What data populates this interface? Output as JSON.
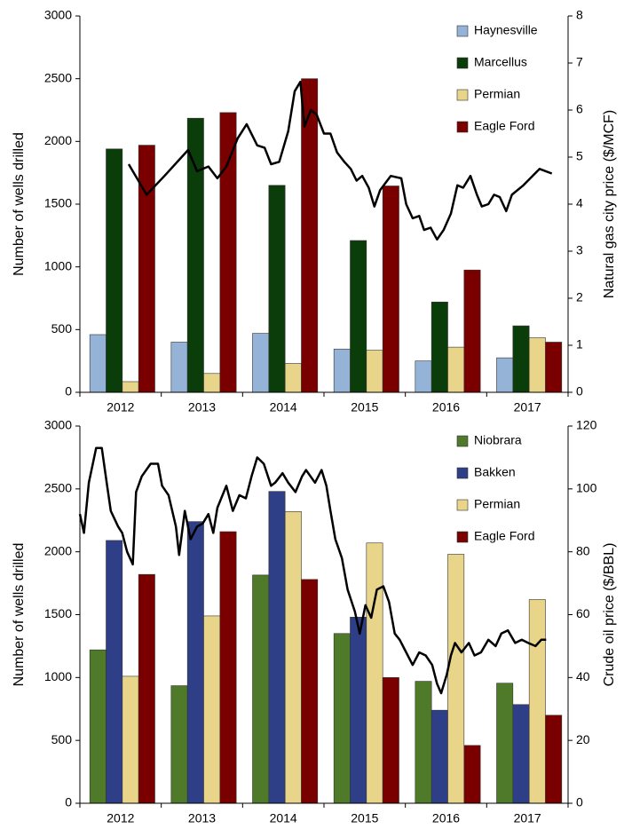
{
  "chart_data": [
    {
      "type": "bar",
      "ylabel": "Number of wells drilled",
      "y2label": "Natural gas city price ($/MCF)",
      "categories": [
        "2012",
        "2013",
        "2014",
        "2015",
        "2016",
        "2017"
      ],
      "xlim": [
        2012,
        2018
      ],
      "ylim": [
        0,
        3000
      ],
      "yticks": [
        0,
        500,
        1000,
        1500,
        2000,
        2500,
        3000
      ],
      "y2lim": [
        0,
        8
      ],
      "y2ticks": [
        0,
        1,
        2,
        3,
        4,
        5,
        6,
        7,
        8
      ],
      "legend": "upper right",
      "series": [
        {
          "name": "Haynesville",
          "color": "#95b3d7",
          "values": [
            460,
            400,
            470,
            345,
            250,
            275
          ]
        },
        {
          "name": "Marcellus",
          "color": "#0b3d0b",
          "values": [
            1940,
            2185,
            1650,
            1210,
            720,
            530
          ]
        },
        {
          "name": "Permian",
          "color": "#e8d58a",
          "values": [
            85,
            150,
            230,
            335,
            360,
            435
          ]
        },
        {
          "name": "Eagle Ford",
          "color": "#7a0000",
          "values": [
            1970,
            2230,
            2500,
            1645,
            975,
            400
          ]
        },
        {
          "type": "line",
          "axis": "y2",
          "color": "#000000",
          "x": [
            2012.6,
            2012.82,
            2013.04,
            2013.33,
            2013.44,
            2013.58,
            2013.69,
            2013.8,
            2013.94,
            2014.05,
            2014.18,
            2014.27,
            2014.35,
            2014.45,
            2014.56,
            2014.64,
            2014.71,
            2014.76,
            2014.84,
            2014.91,
            2015.0,
            2015.08,
            2015.16,
            2015.25,
            2015.33,
            2015.4,
            2015.47,
            2015.55,
            2015.62,
            2015.69,
            2015.82,
            2015.95,
            2016.01,
            2016.09,
            2016.17,
            2016.23,
            2016.31,
            2016.39,
            2016.47,
            2016.56,
            2016.64,
            2016.71,
            2016.8,
            2016.88,
            2016.94,
            2017.02,
            2017.09,
            2017.16,
            2017.24,
            2017.31,
            2017.45,
            2017.65,
            2017.8
          ],
          "values": [
            4.85,
            4.2,
            4.6,
            5.15,
            4.7,
            4.8,
            4.55,
            4.8,
            5.4,
            5.7,
            5.25,
            5.2,
            4.85,
            4.9,
            5.55,
            6.4,
            6.6,
            5.65,
            6.0,
            5.9,
            5.5,
            5.5,
            5.1,
            4.9,
            4.75,
            4.5,
            4.6,
            4.35,
            3.95,
            4.3,
            4.6,
            4.55,
            4.0,
            3.7,
            3.75,
            3.45,
            3.5,
            3.25,
            3.45,
            3.8,
            4.4,
            4.35,
            4.6,
            4.2,
            3.95,
            4.0,
            4.2,
            4.15,
            3.85,
            4.2,
            4.4,
            4.75,
            4.65
          ]
        }
      ]
    },
    {
      "type": "bar",
      "ylabel": "Number of wells drilled",
      "y2label": "Crude oil price ($/BBL)",
      "categories": [
        "2012",
        "2013",
        "2014",
        "2015",
        "2016",
        "2017"
      ],
      "xlim": [
        2012,
        2018
      ],
      "ylim": [
        0,
        3000
      ],
      "yticks": [
        0,
        500,
        1000,
        1500,
        2000,
        2500,
        3000
      ],
      "y2lim": [
        0,
        120
      ],
      "y2ticks": [
        0,
        20,
        40,
        60,
        80,
        100,
        120
      ],
      "legend": "upper right",
      "series": [
        {
          "name": "Niobrara",
          "color": "#4e7a29",
          "values": [
            1220,
            935,
            1815,
            1350,
            970,
            955
          ]
        },
        {
          "name": "Bakken",
          "color": "#2e3f87",
          "values": [
            2090,
            2240,
            2480,
            1480,
            740,
            785
          ]
        },
        {
          "name": "Permian",
          "color": "#e8d58a",
          "values": [
            1010,
            1490,
            2320,
            2070,
            1980,
            1620
          ]
        },
        {
          "name": "Eagle Ford",
          "color": "#7a0000",
          "values": [
            1820,
            2160,
            1780,
            1000,
            460,
            700
          ]
        },
        {
          "type": "line",
          "axis": "y2",
          "color": "#000000",
          "x": [
            2012.0,
            2012.05,
            2012.11,
            2012.2,
            2012.27,
            2012.33,
            2012.38,
            2012.47,
            2012.52,
            2012.58,
            2012.65,
            2012.69,
            2012.76,
            2012.87,
            2012.96,
            2013.01,
            2013.09,
            2013.18,
            2013.22,
            2013.29,
            2013.36,
            2013.44,
            2013.51,
            2013.58,
            2013.64,
            2013.69,
            2013.8,
            2013.88,
            2013.96,
            2014.04,
            2014.11,
            2014.18,
            2014.26,
            2014.35,
            2014.4,
            2014.49,
            2014.56,
            2014.65,
            2014.73,
            2014.78,
            2014.89,
            2014.97,
            2015.03,
            2015.08,
            2015.14,
            2015.22,
            2015.29,
            2015.38,
            2015.44,
            2015.51,
            2015.58,
            2015.65,
            2015.73,
            2015.8,
            2015.87,
            2015.93,
            2016.01,
            2016.09,
            2016.17,
            2016.25,
            2016.33,
            2016.39,
            2016.44,
            2016.51,
            2016.56,
            2016.61,
            2016.69,
            2016.78,
            2016.85,
            2016.93,
            2017.02,
            2017.11,
            2017.18,
            2017.26,
            2017.35,
            2017.43,
            2017.51,
            2017.6,
            2017.67,
            2017.73
          ],
          "values": [
            92,
            86,
            102,
            113,
            113,
            102,
            93,
            88,
            86,
            80,
            76,
            99,
            104,
            108,
            108,
            101,
            98,
            88,
            79,
            93,
            84,
            88,
            89,
            92,
            86,
            94,
            101,
            93,
            98,
            97,
            104,
            110,
            108,
            101,
            102,
            105,
            102,
            99,
            104,
            106,
            102,
            106,
            101,
            93,
            84,
            78,
            68,
            61,
            54,
            63,
            59,
            68,
            69,
            64,
            54,
            52,
            48,
            44,
            48,
            47,
            44,
            38,
            35,
            41,
            47,
            51,
            48,
            51,
            47,
            48,
            52,
            50,
            54,
            55,
            51,
            52,
            51,
            50,
            52,
            52
          ]
        }
      ]
    }
  ]
}
